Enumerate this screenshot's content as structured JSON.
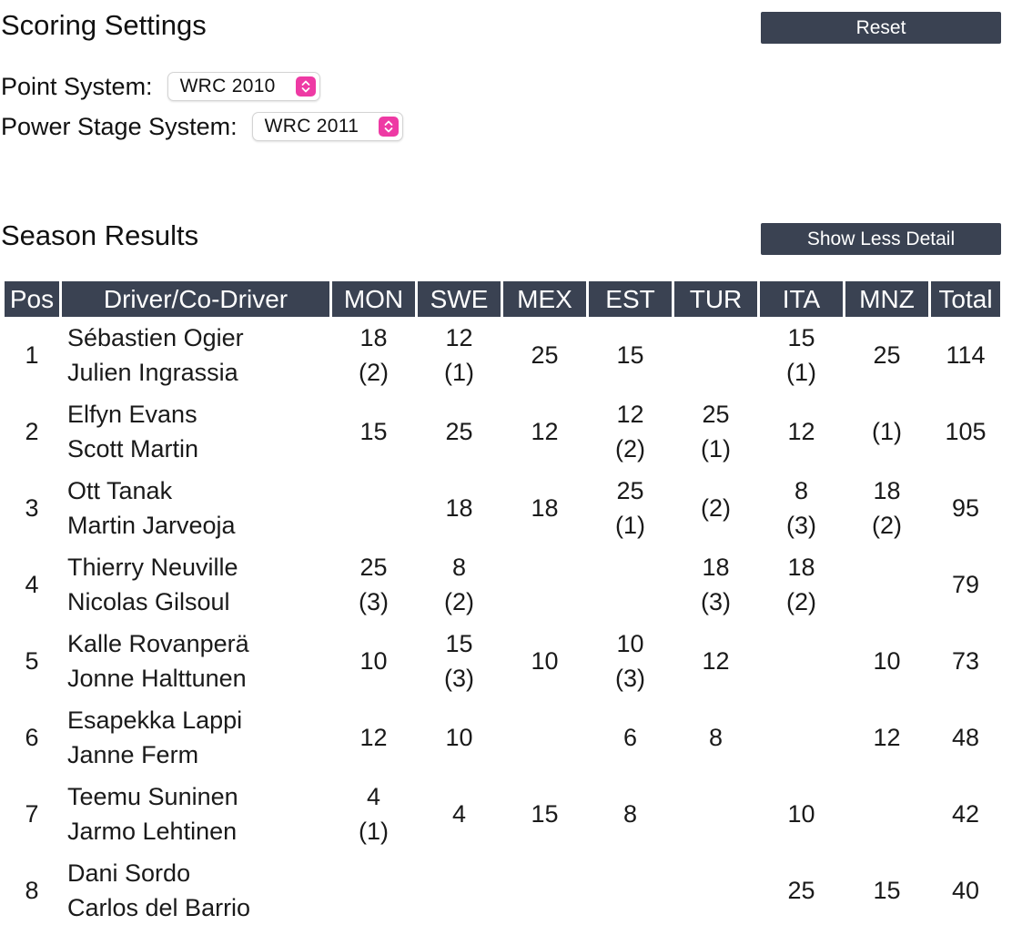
{
  "scoring": {
    "title": "Scoring Settings",
    "reset_label": "Reset",
    "point_system_label": "Point System:",
    "point_system_value": "WRC 2010",
    "power_stage_label": "Power Stage System:",
    "power_stage_value": "WRC 2011"
  },
  "results": {
    "title": "Season Results",
    "detail_toggle_label": "Show Less Detail",
    "columns": [
      "Pos",
      "Driver/Co-Driver",
      "MON",
      "SWE",
      "MEX",
      "EST",
      "TUR",
      "ITA",
      "MNZ",
      "Total"
    ],
    "rows": [
      {
        "pos": "1",
        "driver": "Sébastien Ogier",
        "codriver": "Julien Ingrassia",
        "cells": [
          [
            "18",
            "(2)"
          ],
          [
            "12",
            "(1)"
          ],
          [
            "25"
          ],
          [
            "15"
          ],
          [],
          [
            "15",
            "(1)"
          ],
          [
            "25"
          ]
        ],
        "total": "114"
      },
      {
        "pos": "2",
        "driver": "Elfyn Evans",
        "codriver": "Scott Martin",
        "cells": [
          [
            "15"
          ],
          [
            "25"
          ],
          [
            "12"
          ],
          [
            "12",
            "(2)"
          ],
          [
            "25",
            "(1)"
          ],
          [
            "12"
          ],
          [
            "(1)"
          ]
        ],
        "total": "105"
      },
      {
        "pos": "3",
        "driver": "Ott Tanak",
        "codriver": "Martin Jarveoja",
        "cells": [
          [],
          [
            "18"
          ],
          [
            "18"
          ],
          [
            "25",
            "(1)"
          ],
          [
            "(2)"
          ],
          [
            "8",
            "(3)"
          ],
          [
            "18",
            "(2)"
          ]
        ],
        "total": "95"
      },
      {
        "pos": "4",
        "driver": "Thierry Neuville",
        "codriver": "Nicolas Gilsoul",
        "cells": [
          [
            "25",
            "(3)"
          ],
          [
            "8",
            "(2)"
          ],
          [],
          [],
          [
            "18",
            "(3)"
          ],
          [
            "18",
            "(2)"
          ],
          []
        ],
        "total": "79"
      },
      {
        "pos": "5",
        "driver": "Kalle Rovanperä",
        "codriver": "Jonne Halttunen",
        "cells": [
          [
            "10"
          ],
          [
            "15",
            "(3)"
          ],
          [
            "10"
          ],
          [
            "10",
            "(3)"
          ],
          [
            "12"
          ],
          [],
          [
            "10"
          ]
        ],
        "total": "73"
      },
      {
        "pos": "6",
        "driver": "Esapekka Lappi",
        "codriver": "Janne Ferm",
        "cells": [
          [
            "12"
          ],
          [
            "10"
          ],
          [],
          [
            "6"
          ],
          [
            "8"
          ],
          [],
          [
            "12"
          ]
        ],
        "total": "48"
      },
      {
        "pos": "7",
        "driver": "Teemu Suninen",
        "codriver": "Jarmo Lehtinen",
        "cells": [
          [
            "4",
            "(1)"
          ],
          [
            "4"
          ],
          [
            "15"
          ],
          [
            "8"
          ],
          [],
          [
            "10"
          ],
          []
        ],
        "total": "42"
      },
      {
        "pos": "8",
        "driver": "Dani Sordo",
        "codriver": "Carlos del Barrio",
        "cells": [
          [],
          [],
          [],
          [],
          [],
          [
            "25"
          ],
          [
            "15"
          ]
        ],
        "total": "40"
      }
    ]
  },
  "colors": {
    "header_bg": "#3a4252",
    "select_accent": "#ee3aa4"
  },
  "icons": {
    "select_arrows": "chevron-up-down-icon"
  }
}
